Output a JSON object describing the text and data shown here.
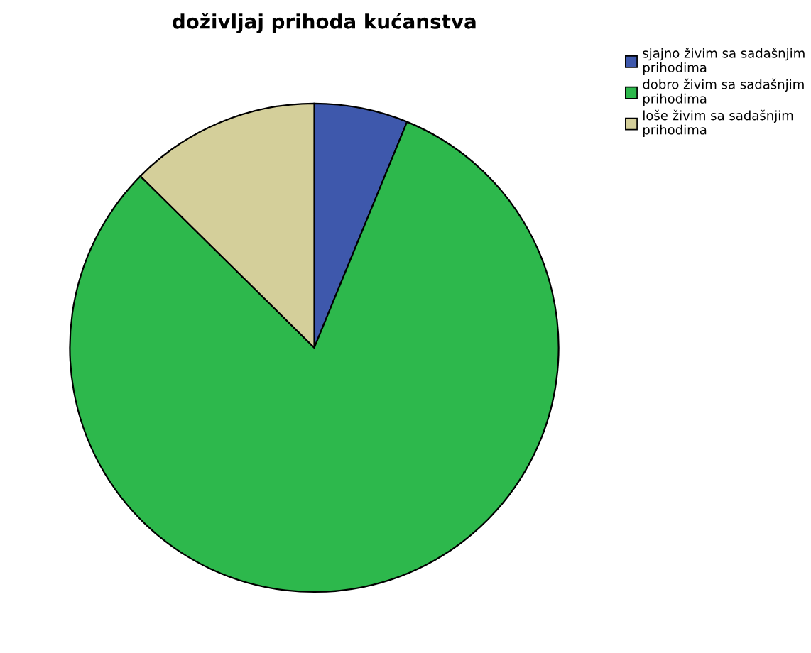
{
  "chart_data": {
    "type": "pie",
    "title": "doživljaj prihoda kućanstva",
    "categories": [
      "sjajno živim sa sadašnjim prihodima",
      "dobro živim sa sadašnjim prihodima",
      "loše živim sa sadašnjim prihodima"
    ],
    "values": [
      6.2,
      81.2,
      12.6
    ],
    "colors": [
      "#3e58ac",
      "#2db84c",
      "#d4cf9a"
    ],
    "legend": "top right"
  }
}
